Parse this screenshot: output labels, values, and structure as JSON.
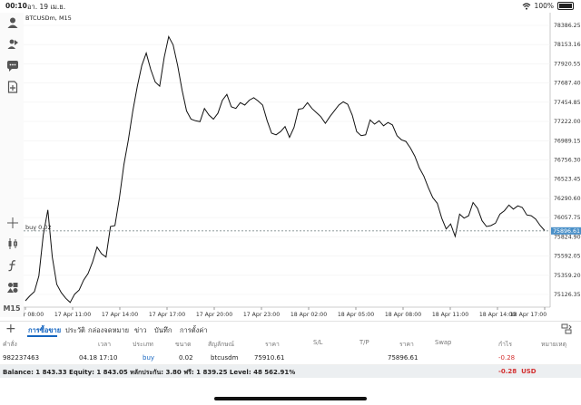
{
  "status_bar": {
    "time": "00:10",
    "date": "อา. 19 เม.ย.",
    "battery": "100%"
  },
  "chart": {
    "symbol": "BTCUSDm, M15",
    "order_label": "buy 0.02",
    "current_price": "75896.61",
    "price_labels": [
      "78386.25",
      "78153.16",
      "77920.55",
      "77687.40",
      "77454.85",
      "77222.00",
      "76989.15",
      "76756.30",
      "76523.45",
      "76290.60",
      "76057.75",
      "75824.90",
      "75592.05",
      "75359.20",
      "75126.35"
    ],
    "time_labels": [
      "17 Apr 08:00",
      "17 Apr 11:00",
      "17 Apr 14:00",
      "17 Apr 17:00",
      "17 Apr 20:00",
      "17 Apr 23:00",
      "18 Apr 02:00",
      "18 Apr 05:00",
      "18 Apr 08:00",
      "18 Apr 11:00",
      "18 Apr 14:00",
      "18 Apr 17:00"
    ],
    "colors": {
      "line": "#111111",
      "current_price_bg": "#4a90c8",
      "order_line": "#7f8c8d"
    }
  },
  "chart_data": {
    "type": "line",
    "ylim": [
      75126.35,
      78386.25
    ],
    "x_ticks": [
      "17 Apr 08:00",
      "17 Apr 11:00",
      "17 Apr 14:00",
      "17 Apr 17:00",
      "17 Apr 20:00",
      "17 Apr 23:00",
      "18 Apr 02:00",
      "18 Apr 05:00",
      "18 Apr 08:00",
      "18 Apr 11:00",
      "18 Apr 14:00",
      "18 Apr 17:00"
    ],
    "x_tick_bars": [
      0,
      12,
      24,
      36,
      48,
      60,
      72,
      84,
      96,
      108,
      120,
      132
    ],
    "series": [
      {
        "values": [
          75050,
          75110,
          75160,
          75350,
          75850,
          76150,
          75580,
          75250,
          75150,
          75080,
          75030,
          75130,
          75180,
          75300,
          75380,
          75520,
          75700,
          75620,
          75580,
          75950,
          75960,
          76300,
          76700,
          77000,
          77350,
          77650,
          77900,
          78050,
          77850,
          77700,
          77650,
          78000,
          78250,
          78150,
          77900,
          77600,
          77350,
          77250,
          77230,
          77220,
          77380,
          77300,
          77250,
          77320,
          77480,
          77550,
          77400,
          77380,
          77450,
          77420,
          77480,
          77510,
          77470,
          77420,
          77230,
          77080,
          77060,
          77100,
          77160,
          77030,
          77150,
          77370,
          77380,
          77450,
          77380,
          77330,
          77280,
          77200,
          77280,
          77350,
          77420,
          77460,
          77430,
          77300,
          77100,
          77050,
          77060,
          77240,
          77190,
          77230,
          77170,
          77210,
          77180,
          77050,
          77000,
          76980,
          76900,
          76800,
          76660,
          76560,
          76420,
          76300,
          76230,
          76050,
          75920,
          75980,
          75830,
          76100,
          76050,
          76080,
          76240,
          76170,
          76020,
          75950,
          75960,
          75990,
          76100,
          76140,
          76210,
          76160,
          76200,
          76180,
          76090,
          76080,
          76040,
          75960,
          75900
        ]
      }
    ]
  },
  "toolbar_icons": [
    "user-icon",
    "share-icon",
    "chat-icon",
    "add-file-icon",
    "crosshair-icon",
    "candlestick-icon",
    "function-icon",
    "objects-icon"
  ],
  "timeframe": "M15",
  "tabs": [
    "การซื้อขาย",
    "ประวัติ",
    "กล่องจดหมาย",
    "ข่าว",
    "บันทึก",
    "การตั้งค่า"
  ],
  "columns": [
    "คำสั่ง",
    "เวลา",
    "ประเภท",
    "ขนาด",
    "สัญลักษณ์",
    "ราคา",
    "S/L",
    "T/P",
    "ราคา",
    "Swap",
    "กำไร",
    "หมายเหตุ"
  ],
  "positions": [
    {
      "ticket": "982237463",
      "time": "04.18 17:10",
      "type": "buy",
      "volume": "0.02",
      "symbol": "btcusdm",
      "open_price": "75910.61",
      "current_price": "75896.61",
      "profit": "-0.28"
    }
  ],
  "balance": {
    "text": "Balance: 1 843.33 Equity: 1 843.05 หลักประกัน: 3.80 ฟรี: 1 839.25 Level: 48 562.91%",
    "profit": "-0.28",
    "currency": "USD"
  }
}
